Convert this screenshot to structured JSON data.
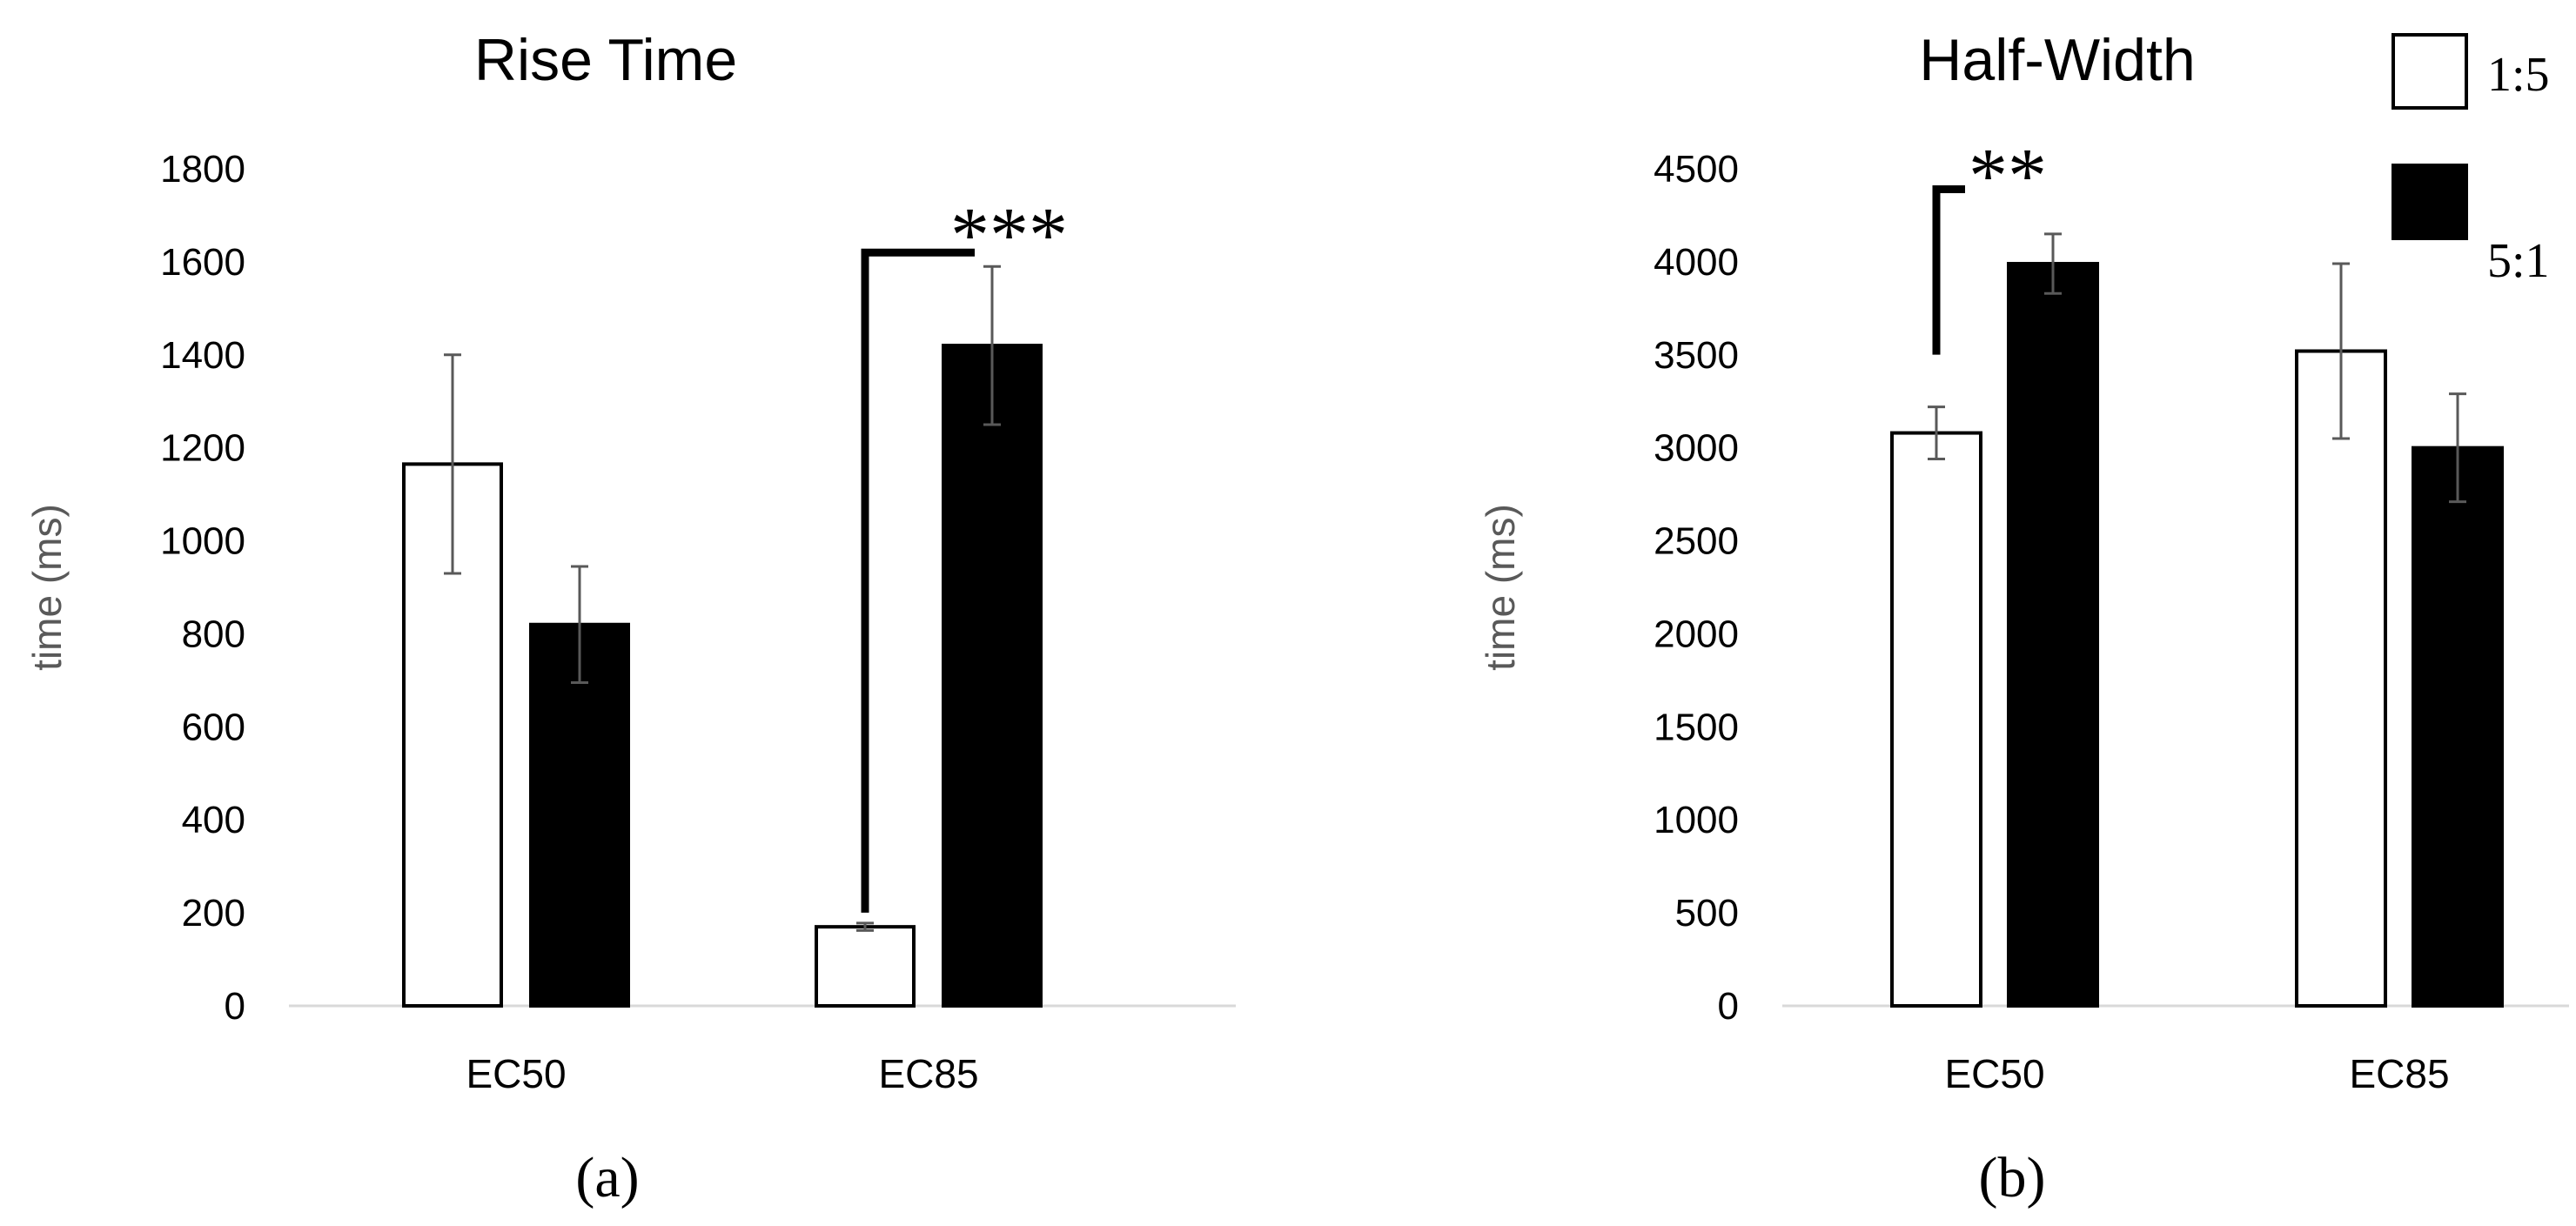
{
  "chart_data": [
    {
      "type": "bar",
      "panel_label": "(a)",
      "title": "Rise Time",
      "ylabel": "time (ms)",
      "xlabel": "",
      "categories": [
        "EC50",
        "EC85"
      ],
      "ylim": [
        0,
        1800
      ],
      "yticks": [
        0,
        200,
        400,
        600,
        800,
        1000,
        1200,
        1400,
        1600,
        1800
      ],
      "grid": false,
      "series": [
        {
          "name": "1:5",
          "values": [
            1165,
            170
          ],
          "errors": [
            235,
            8
          ],
          "fill": "#ffffff"
        },
        {
          "name": "5:1",
          "values": [
            820,
            1420
          ],
          "errors": [
            125,
            170
          ],
          "fill": "#000000"
        }
      ],
      "annotations": [
        {
          "text": "***",
          "category": "EC85"
        }
      ]
    },
    {
      "type": "bar",
      "panel_label": "(b)",
      "title": "Half-Width",
      "ylabel": "time (ms)",
      "xlabel": "",
      "categories": [
        "EC50",
        "EC85"
      ],
      "ylim": [
        0,
        4500
      ],
      "yticks": [
        0,
        500,
        1000,
        1500,
        2000,
        2500,
        3000,
        3500,
        4000,
        4500
      ],
      "grid": false,
      "series": [
        {
          "name": "1:5",
          "values": [
            3080,
            3520
          ],
          "errors": [
            140,
            470
          ],
          "fill": "#ffffff"
        },
        {
          "name": "5:1",
          "values": [
            3990,
            3000
          ],
          "errors": [
            160,
            290
          ],
          "fill": "#000000"
        }
      ],
      "annotations": [
        {
          "text": "**",
          "category": "EC50"
        }
      ]
    }
  ],
  "legend": {
    "placement": "top-right",
    "items": [
      {
        "label": "1:5",
        "fill": "#ffffff"
      },
      {
        "label": "5:1",
        "fill": "#000000"
      }
    ]
  }
}
